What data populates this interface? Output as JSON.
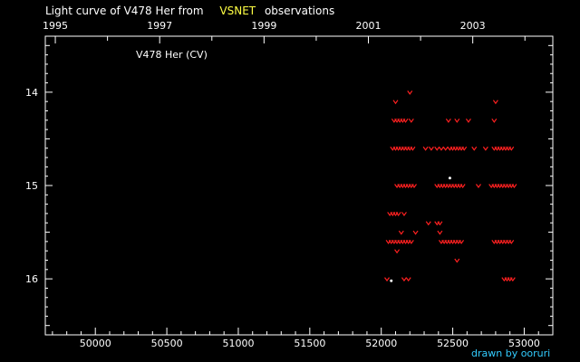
{
  "title": {
    "prefix": "Light curve of V478 Her from",
    "highlight": "VSNET",
    "suffix": "observations"
  },
  "star_label": "V478 Her (CV)",
  "credit": "drawn by ooruri",
  "colors": {
    "background": "#000000",
    "upper_limit": "#ff2020",
    "detection": "#ffffff",
    "highlight": "#ffff44",
    "credit": "#33ccff"
  },
  "chart_data": {
    "type": "scatter",
    "xlabel": "",
    "ylabel": "",
    "xlim": [
      49650,
      53200
    ],
    "ylim": [
      16.6,
      13.4
    ],
    "y_inverted": true,
    "x_ticks": [
      50000,
      50500,
      51000,
      51500,
      52000,
      52500,
      53000
    ],
    "x_tick_labels": [
      "50000",
      "50500",
      "51000",
      "51500",
      "52000",
      "52500",
      "53000"
    ],
    "top_ticks": [
      1995,
      1997,
      1999,
      2001,
      2003
    ],
    "top_tick_x": [
      49720,
      50450,
      51180,
      51910,
      52640
    ],
    "y_ticks": [
      14,
      15,
      16
    ],
    "y_tick_labels": [
      "14",
      "15",
      "16"
    ],
    "grid": false,
    "legend": "none",
    "series": [
      {
        "marker": "v",
        "color": "#ff2020",
        "points": [
          [
            52100,
            14.1
          ],
          [
            52200,
            14.0
          ],
          [
            52800,
            14.1
          ],
          [
            52090,
            14.3
          ],
          [
            52110,
            14.3
          ],
          [
            52130,
            14.3
          ],
          [
            52150,
            14.3
          ],
          [
            52170,
            14.3
          ],
          [
            52210,
            14.3
          ],
          [
            52470,
            14.3
          ],
          [
            52530,
            14.3
          ],
          [
            52610,
            14.3
          ],
          [
            52790,
            14.3
          ],
          [
            52080,
            14.6
          ],
          [
            52100,
            14.6
          ],
          [
            52120,
            14.6
          ],
          [
            52140,
            14.6
          ],
          [
            52160,
            14.6
          ],
          [
            52180,
            14.6
          ],
          [
            52200,
            14.6
          ],
          [
            52220,
            14.6
          ],
          [
            52310,
            14.6
          ],
          [
            52350,
            14.6
          ],
          [
            52390,
            14.6
          ],
          [
            52420,
            14.6
          ],
          [
            52450,
            14.6
          ],
          [
            52480,
            14.6
          ],
          [
            52500,
            14.6
          ],
          [
            52520,
            14.6
          ],
          [
            52540,
            14.6
          ],
          [
            52560,
            14.6
          ],
          [
            52580,
            14.6
          ],
          [
            52650,
            14.6
          ],
          [
            52730,
            14.6
          ],
          [
            52790,
            14.6
          ],
          [
            52810,
            14.6
          ],
          [
            52830,
            14.6
          ],
          [
            52850,
            14.6
          ],
          [
            52870,
            14.6
          ],
          [
            52890,
            14.6
          ],
          [
            52910,
            14.6
          ],
          [
            52110,
            15.0
          ],
          [
            52130,
            15.0
          ],
          [
            52150,
            15.0
          ],
          [
            52170,
            15.0
          ],
          [
            52190,
            15.0
          ],
          [
            52210,
            15.0
          ],
          [
            52230,
            15.0
          ],
          [
            52390,
            15.0
          ],
          [
            52410,
            15.0
          ],
          [
            52430,
            15.0
          ],
          [
            52450,
            15.0
          ],
          [
            52470,
            15.0
          ],
          [
            52490,
            15.0
          ],
          [
            52510,
            15.0
          ],
          [
            52530,
            15.0
          ],
          [
            52550,
            15.0
          ],
          [
            52570,
            15.0
          ],
          [
            52680,
            15.0
          ],
          [
            52770,
            15.0
          ],
          [
            52790,
            15.0
          ],
          [
            52810,
            15.0
          ],
          [
            52830,
            15.0
          ],
          [
            52850,
            15.0
          ],
          [
            52870,
            15.0
          ],
          [
            52890,
            15.0
          ],
          [
            52910,
            15.0
          ],
          [
            52930,
            15.0
          ],
          [
            52060,
            15.3
          ],
          [
            52080,
            15.3
          ],
          [
            52100,
            15.3
          ],
          [
            52120,
            15.3
          ],
          [
            52160,
            15.3
          ],
          [
            52330,
            15.4
          ],
          [
            52390,
            15.4
          ],
          [
            52410,
            15.4
          ],
          [
            52140,
            15.5
          ],
          [
            52240,
            15.5
          ],
          [
            52410,
            15.5
          ],
          [
            52050,
            15.6
          ],
          [
            52070,
            15.6
          ],
          [
            52090,
            15.6
          ],
          [
            52110,
            15.6
          ],
          [
            52130,
            15.6
          ],
          [
            52150,
            15.6
          ],
          [
            52170,
            15.6
          ],
          [
            52190,
            15.6
          ],
          [
            52210,
            15.6
          ],
          [
            52420,
            15.6
          ],
          [
            52440,
            15.6
          ],
          [
            52460,
            15.6
          ],
          [
            52480,
            15.6
          ],
          [
            52500,
            15.6
          ],
          [
            52520,
            15.6
          ],
          [
            52540,
            15.6
          ],
          [
            52560,
            15.6
          ],
          [
            52790,
            15.6
          ],
          [
            52810,
            15.6
          ],
          [
            52830,
            15.6
          ],
          [
            52850,
            15.6
          ],
          [
            52870,
            15.6
          ],
          [
            52890,
            15.6
          ],
          [
            52910,
            15.6
          ],
          [
            52110,
            15.7
          ],
          [
            52530,
            15.8
          ],
          [
            52040,
            16.0
          ],
          [
            52160,
            16.0
          ],
          [
            52190,
            16.0
          ],
          [
            52860,
            16.0
          ],
          [
            52880,
            16.0
          ],
          [
            52900,
            16.0
          ],
          [
            52920,
            16.0
          ]
        ]
      },
      {
        "marker": "dot",
        "color": "#ffffff",
        "points": [
          [
            52480,
            14.92
          ],
          [
            52070,
            16.02
          ]
        ]
      }
    ]
  }
}
